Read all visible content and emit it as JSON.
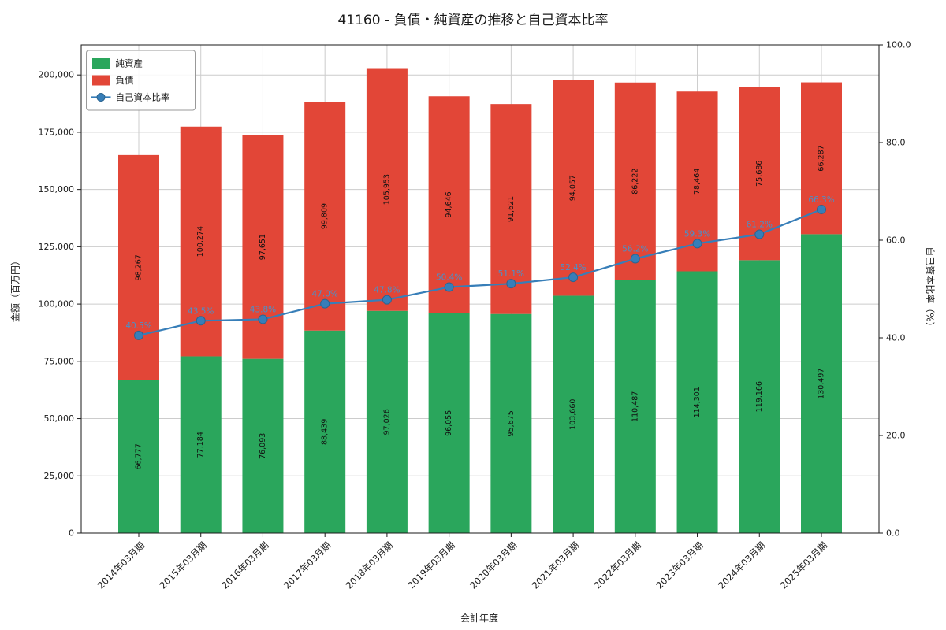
{
  "chart_data": {
    "type": "bar",
    "title": "41160 - 負債・純資産の推移と自己資本比率",
    "xlabel": "会計年度",
    "ylabel_left": "金額（百万円）",
    "ylabel_right": "自己資本比率（%）",
    "categories": [
      "2014年03月期",
      "2015年03月期",
      "2016年03月期",
      "2017年03月期",
      "2018年03月期",
      "2019年03月期",
      "2020年03月期",
      "2021年03月期",
      "2022年03月期",
      "2023年03月期",
      "2024年03月期",
      "2025年03月期"
    ],
    "series": [
      {
        "name": "純資産",
        "kind": "bar",
        "color": "#2aa65c",
        "values": [
          66777,
          77184,
          76093,
          88439,
          97026,
          96055,
          95675,
          103660,
          110487,
          114301,
          119166,
          130497
        ]
      },
      {
        "name": "負債",
        "kind": "bar",
        "color": "#e24637",
        "values": [
          98267,
          100274,
          97651,
          99809,
          105953,
          94646,
          91621,
          94057,
          86222,
          78464,
          75686,
          66287
        ]
      },
      {
        "name": "自己資本比率",
        "kind": "line",
        "color": "#377eb8",
        "marker_edge": "#2b6591",
        "label_color": "#4a90c9",
        "values": [
          40.5,
          43.5,
          43.8,
          47.0,
          47.8,
          50.4,
          51.1,
          52.4,
          56.2,
          59.3,
          61.2,
          66.3
        ]
      }
    ],
    "left_axis": {
      "ticks": [
        0,
        25000,
        50000,
        75000,
        100000,
        125000,
        150000,
        175000,
        200000
      ],
      "max": 213128
    },
    "right_axis": {
      "ticks": [
        0,
        20,
        40,
        60,
        80,
        100
      ],
      "max": 100
    },
    "grid": true,
    "legend_position": "upper-left"
  }
}
